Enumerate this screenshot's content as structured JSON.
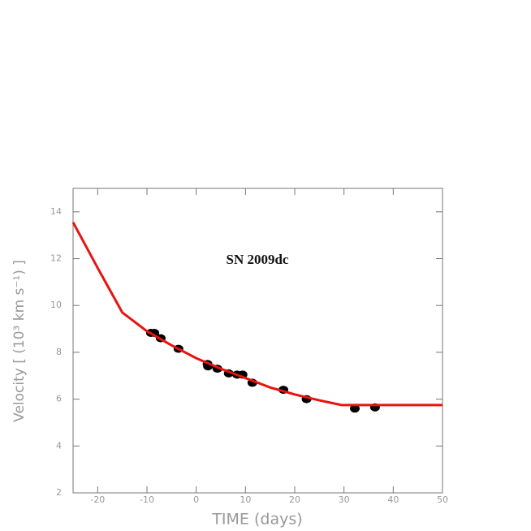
{
  "chart_data": {
    "type": "scatter",
    "annotation": "SN 2009dc",
    "x_label": "TIME (days)",
    "y_label": "Velocity [ (10³ km s⁻¹) ]",
    "xlim": [
      -25,
      50
    ],
    "xticks": [
      -20,
      -10,
      0,
      10,
      20,
      30,
      40,
      50
    ],
    "ylim": [
      2,
      15
    ],
    "yticks": [
      2,
      4,
      6,
      8,
      10,
      12,
      14
    ],
    "series": [
      {
        "kind": "points",
        "color": "#000000",
        "x": [
          -9.2,
          -8.5,
          -7.2,
          -3.6,
          2.3,
          2.4,
          4.3,
          6.6,
          8.3,
          9.4,
          11.4,
          17.7,
          22.4,
          32.2,
          36.3
        ],
        "values": [
          8.83,
          8.83,
          8.6,
          8.15,
          7.5,
          7.4,
          7.3,
          7.1,
          7.05,
          7.05,
          6.7,
          6.4,
          6.0,
          5.6,
          5.65
        ]
      },
      {
        "kind": "line",
        "color": "#e8130f",
        "x": [
          -25,
          -20,
          -15,
          -10,
          -5,
          0,
          5,
          10,
          15,
          20,
          25,
          29.5,
          50
        ],
        "values": [
          13.55,
          11.6,
          9.7,
          8.9,
          8.3,
          7.75,
          7.3,
          6.9,
          6.5,
          6.2,
          5.95,
          5.75,
          5.75
        ]
      }
    ]
  }
}
